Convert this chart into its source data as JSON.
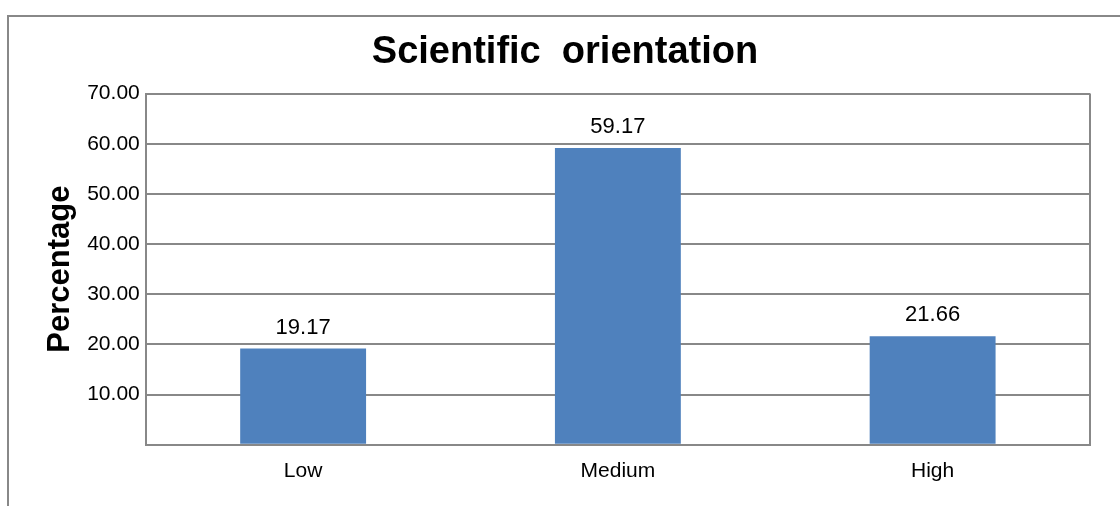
{
  "chart_data": {
    "type": "bar",
    "title": "Scientific  orientation",
    "ylabel": "Percentage",
    "categories": [
      "Low",
      "Medium",
      "High"
    ],
    "values": [
      19.17,
      59.17,
      21.66
    ],
    "color": "#4f81bd",
    "ylim": [
      0,
      70
    ],
    "yticks": [
      {
        "value": 0,
        "label": null
      },
      {
        "value": 10,
        "label": "10.00"
      },
      {
        "value": 20,
        "label": "20.00"
      },
      {
        "value": 30,
        "label": "30.00"
      },
      {
        "value": 40,
        "label": "40.00"
      },
      {
        "value": 50,
        "label": "50.00"
      },
      {
        "value": 60,
        "label": "60.00"
      },
      {
        "value": 70,
        "label": "70.00"
      }
    ],
    "grid": "y",
    "data_labels": true,
    "legend": false
  }
}
